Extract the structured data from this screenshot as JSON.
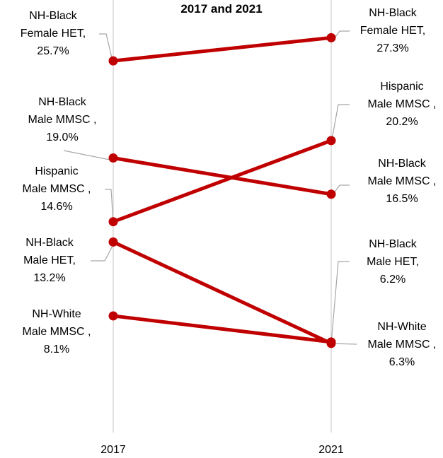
{
  "chart_data": {
    "type": "line",
    "title": "2017 and 2021",
    "x": [
      "2017",
      "2021"
    ],
    "series": [
      {
        "name": "NH-Black Female HET",
        "values": [
          25.7,
          27.3
        ],
        "labels": [
          [
            "NH-Black",
            "Female HET,",
            "25.7%"
          ],
          [
            "NH-Black",
            "Female HET,",
            "27.3%"
          ]
        ]
      },
      {
        "name": "NH-Black Male MMSC",
        "values": [
          19.0,
          16.5
        ],
        "labels": [
          [
            "NH-Black",
            "Male MMSC ,",
            "19.0%"
          ],
          [
            "NH-Black",
            "Male MMSC ,",
            "16.5%"
          ]
        ]
      },
      {
        "name": "Hispanic Male MMSC",
        "values": [
          14.6,
          20.2
        ],
        "labels": [
          [
            "Hispanic",
            "Male MMSC ,",
            "14.6%"
          ],
          [
            "Hispanic",
            "Male MMSC ,",
            "20.2%"
          ]
        ]
      },
      {
        "name": "NH-Black Male HET",
        "values": [
          13.2,
          6.2
        ],
        "labels": [
          [
            "NH-Black",
            "Male HET,",
            "13.2%"
          ],
          [
            "NH-Black",
            "Male HET,",
            "6.2%"
          ]
        ]
      },
      {
        "name": "NH-White Male MMSC",
        "values": [
          8.1,
          6.3
        ],
        "labels": [
          [
            "NH-White",
            "Male MMSC ,",
            "8.1%"
          ],
          [
            "NH-White",
            "Male MMSC ,",
            "6.3%"
          ]
        ]
      }
    ],
    "line_color": "#c00000",
    "leader_color": "#a6a6a6",
    "axis_color": "#d9d9d9",
    "grid": false,
    "legend": "none"
  }
}
